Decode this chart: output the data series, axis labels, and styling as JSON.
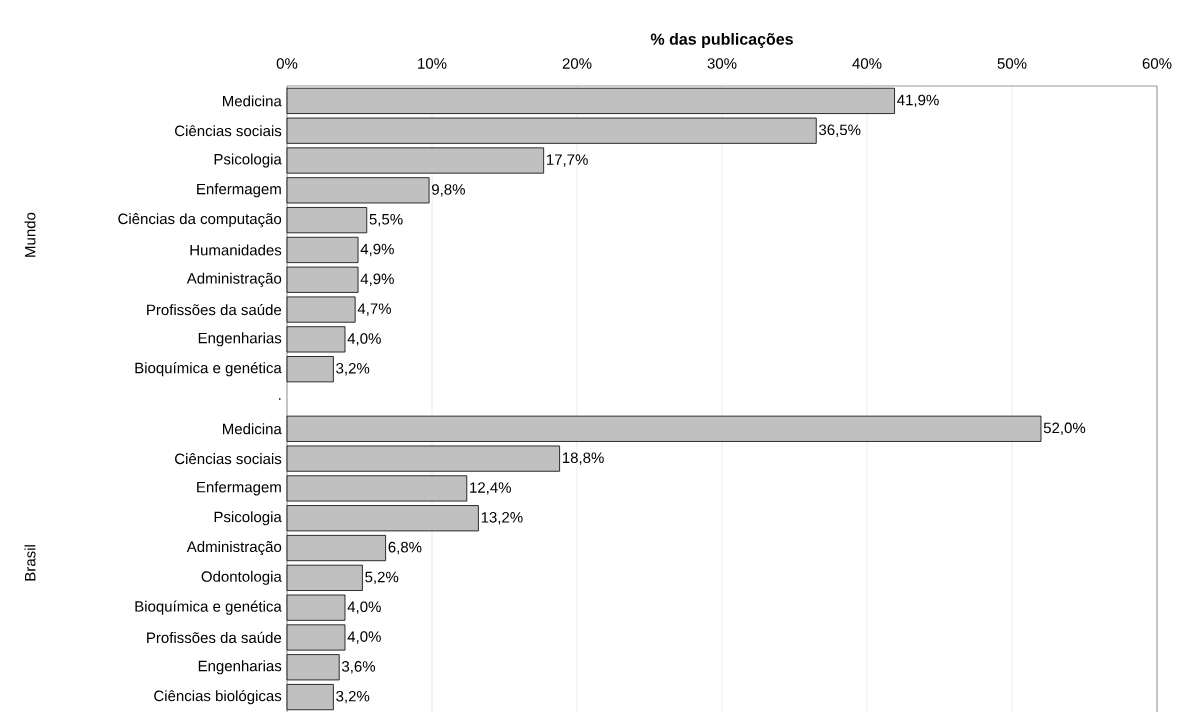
{
  "chart_data": {
    "type": "bar",
    "orientation": "horizontal",
    "xlabel": "% das publicações",
    "categories": [
      "Medicina",
      "Ciências sociais",
      "Psicologia",
      "Enfermagem",
      "Ciências da computação",
      "Humanidades",
      "Administração",
      "Profissões da saúde",
      "Engenharias",
      "Bioquímica e genética",
      ".",
      "Medicina",
      "Ciências sociais",
      "Enfermagem",
      "Psicologia",
      "Administração",
      "Odontologia",
      "Bioquímica e genética",
      "Profissões da saúde",
      "Engenharias",
      "Ciências biológicas"
    ],
    "values": [
      41.9,
      36.5,
      17.7,
      9.8,
      5.5,
      4.9,
      4.9,
      4.7,
      4.0,
      3.2,
      null,
      52.0,
      18.8,
      12.4,
      13.2,
      6.8,
      5.2,
      4.0,
      4.0,
      3.6,
      3.2
    ],
    "value_labels": [
      "41,9%",
      "36,5%",
      "17,7%",
      "9,8%",
      "5,5%",
      "4,9%",
      "4,9%",
      "4,7%",
      "4,0%",
      "3,2%",
      null,
      "52,0%",
      "18,8%",
      "12,4%",
      "13,2%",
      "6,8%",
      "5,2%",
      "4,0%",
      "4,0%",
      "3,6%",
      "3,2%"
    ],
    "color": "#c0c0c0",
    "xlim": [
      0,
      60
    ],
    "xticks": [
      {
        "value": 0,
        "label": "0%"
      },
      {
        "value": 10,
        "label": "10%"
      },
      {
        "value": 20,
        "label": "20%"
      },
      {
        "value": 30,
        "label": "30%"
      },
      {
        "value": 40,
        "label": "40%"
      },
      {
        "value": 50,
        "label": "50%"
      },
      {
        "value": 60,
        "label": "60%"
      }
    ],
    "grid": "x",
    "annotations": [
      "Mundo",
      "Brasil"
    ]
  }
}
